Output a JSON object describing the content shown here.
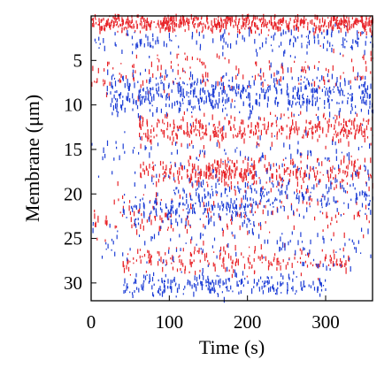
{
  "chart_data": {
    "type": "scatter",
    "title": "",
    "xlabel": "Time (s)",
    "ylabel": "Membrane (μm)",
    "xlim": [
      0,
      360
    ],
    "ylim": [
      32,
      0
    ],
    "y_inverted": true,
    "x_ticks": [
      0,
      100,
      200,
      300
    ],
    "y_ticks": [
      5,
      10,
      15,
      20,
      25,
      30
    ],
    "grid": false,
    "legend": "none",
    "colors": {
      "red": "#e8262b",
      "blue": "#1f3fd6",
      "axis": "#000000"
    },
    "series": [
      {
        "color": "red",
        "bands": [
          {
            "x_range": [
              0,
              360
            ],
            "y_center": 0.8,
            "y_spread": 1.0,
            "density": 0.95
          },
          {
            "x_range": [
              60,
              360
            ],
            "y_center": 12.8,
            "y_spread": 1.6,
            "density": 0.7
          },
          {
            "x_range": [
              120,
              360
            ],
            "y_center": 17.8,
            "y_spread": 1.8,
            "density": 0.6
          },
          {
            "x_range": [
              60,
              210
            ],
            "y_center": 17.5,
            "y_spread": 1.2,
            "density": 0.5
          },
          {
            "x_range": [
              40,
              330
            ],
            "y_center": 27.5,
            "y_spread": 1.5,
            "density": 0.4
          },
          {
            "x_range": [
              0,
              360
            ],
            "y_center": 6.5,
            "y_spread": 2.5,
            "density": 0.25
          },
          {
            "x_range": [
              0,
              360
            ],
            "y_center": 22.5,
            "y_spread": 3.0,
            "density": 0.25
          }
        ]
      },
      {
        "color": "blue",
        "bands": [
          {
            "x_range": [
              20,
              360
            ],
            "y_center": 8.8,
            "y_spread": 2.4,
            "density": 0.95
          },
          {
            "x_range": [
              100,
              360
            ],
            "y_center": 20.3,
            "y_spread": 2.0,
            "density": 0.5
          },
          {
            "x_range": [
              40,
              210
            ],
            "y_center": 22.0,
            "y_spread": 1.6,
            "density": 0.45
          },
          {
            "x_range": [
              40,
              300
            ],
            "y_center": 30.2,
            "y_spread": 1.2,
            "density": 0.5
          },
          {
            "x_range": [
              0,
              360
            ],
            "y_center": 3.0,
            "y_spread": 1.5,
            "density": 0.25
          },
          {
            "x_range": [
              0,
              360
            ],
            "y_center": 16.0,
            "y_spread": 3.0,
            "density": 0.2
          },
          {
            "x_range": [
              0,
              360
            ],
            "y_center": 26.0,
            "y_spread": 3.0,
            "density": 0.2
          }
        ]
      }
    ]
  }
}
